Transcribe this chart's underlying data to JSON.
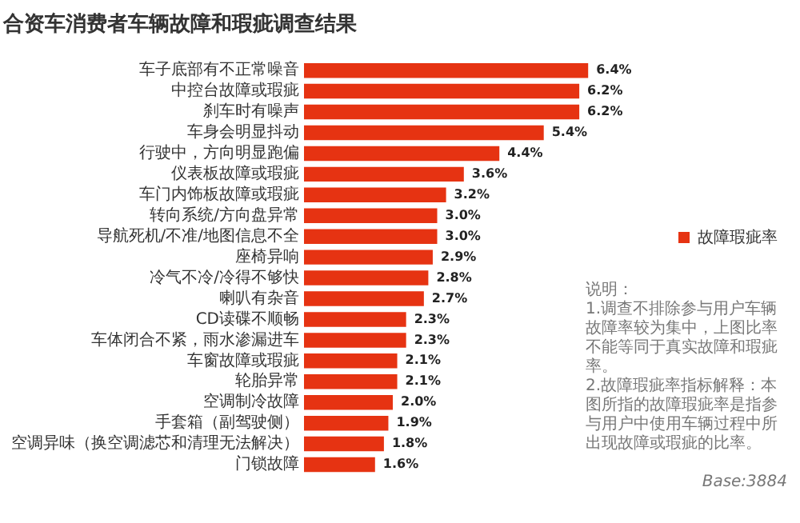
{
  "chart_data": {
    "type": "bar",
    "orientation": "horizontal",
    "title": "合资车消费者车辆故障和瑕疵调查结果",
    "categories": [
      "车子底部有不正常噪音",
      "中控台故障或瑕疵",
      "刹车时有噪声",
      "车身会明显抖动",
      "行驶中，方向明显跑偏",
      "仪表板故障或瑕疵",
      "车门内饰板故障或瑕疵",
      "转向系统/方向盘异常",
      "导航死机/不准/地图信息不全",
      "座椅异响",
      "冷气不冷/冷得不够快",
      "喇叭有杂音",
      "CD读碟不顺畅",
      "车体闭合不紧，雨水渗漏进车",
      "车窗故障或瑕疵",
      "轮胎异常",
      "空调制冷故障",
      "手套箱（副驾驶侧）",
      "空调异味（换空调滤芯和清理无法解决）",
      "门锁故障"
    ],
    "series": [
      {
        "name": "故障瑕疵率",
        "color": "#e63312",
        "values": [
          6.4,
          6.2,
          6.2,
          5.4,
          4.4,
          3.6,
          3.2,
          3.0,
          3.0,
          2.9,
          2.8,
          2.7,
          2.3,
          2.3,
          2.1,
          2.1,
          2.0,
          1.9,
          1.8,
          1.6
        ],
        "value_labels": [
          "6.4%",
          "6.2%",
          "6.2%",
          "5.4%",
          "4.4%",
          "3.6%",
          "3.2%",
          "3.0%",
          "3.0%",
          "2.9%",
          "2.8%",
          "2.7%",
          "2.3%",
          "2.3%",
          "2.1%",
          "2.1%",
          "2.0%",
          "1.9%",
          "1.8%",
          "1.6%"
        ]
      }
    ],
    "legend": "right",
    "grid": false,
    "annotations": [
      "说明：\n1.调查不排除参与用户车辆故障率较为集中，上图比率不能等同于真实故障和瑕疵率。\n2.故障瑕疵率指标解释：本图所指的故障瑕疵率是指参与用户中使用车辆过程中所出现故障或瑕疵的比率。",
      "Base:3884"
    ]
  }
}
